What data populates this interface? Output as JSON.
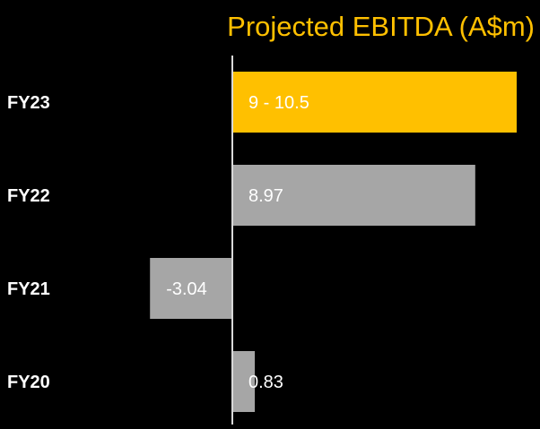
{
  "chart_data": {
    "type": "bar",
    "orientation": "horizontal",
    "title": "Projected EBITDA (A$m)",
    "xlabel": "",
    "ylabel": "",
    "categories": [
      "FY23",
      "FY22",
      "FY21",
      "FY20"
    ],
    "values": [
      10.5,
      8.97,
      -3.04,
      0.83
    ],
    "value_labels": [
      "9 - 10.5",
      "8.97",
      "-3.04",
      "0.83"
    ],
    "xlim": [
      -3.8,
      11
    ],
    "grid": false,
    "legend": "none",
    "colors": {
      "highlight": "#FFC000",
      "bar": "#A6A6A6",
      "axis": "#D9D9D9",
      "text": "#FFFFFF",
      "title": "#FFC000",
      "background": "#000000"
    },
    "highlight_index": 0
  }
}
